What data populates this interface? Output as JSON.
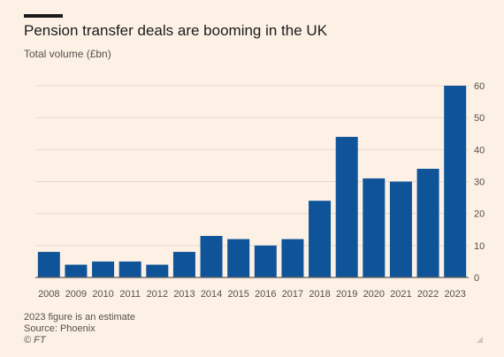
{
  "header": {
    "title": "Pension transfer deals are booming in the UK",
    "subtitle": "Total volume (£bn)"
  },
  "chart_data": {
    "type": "bar",
    "title": "Pension transfer deals are booming in the UK",
    "subtitle": "Total volume (£bn)",
    "categories": [
      "2008",
      "2009",
      "2010",
      "2011",
      "2012",
      "2013",
      "2014",
      "2015",
      "2016",
      "2017",
      "2018",
      "2019",
      "2020",
      "2021",
      "2022",
      "2023"
    ],
    "values": [
      8,
      4,
      5,
      5,
      4,
      8,
      13,
      12,
      10,
      12,
      24,
      44,
      31,
      30,
      34,
      60
    ],
    "ylim": [
      0,
      60
    ],
    "yticks": [
      0,
      10,
      20,
      30,
      40,
      50,
      60
    ],
    "y_axis_side": "right",
    "grid": true,
    "bar_color": "#0f5499"
  },
  "footer": {
    "note": "2023 figure is an estimate",
    "source": "Source: Phoenix",
    "credit": "© FT"
  }
}
